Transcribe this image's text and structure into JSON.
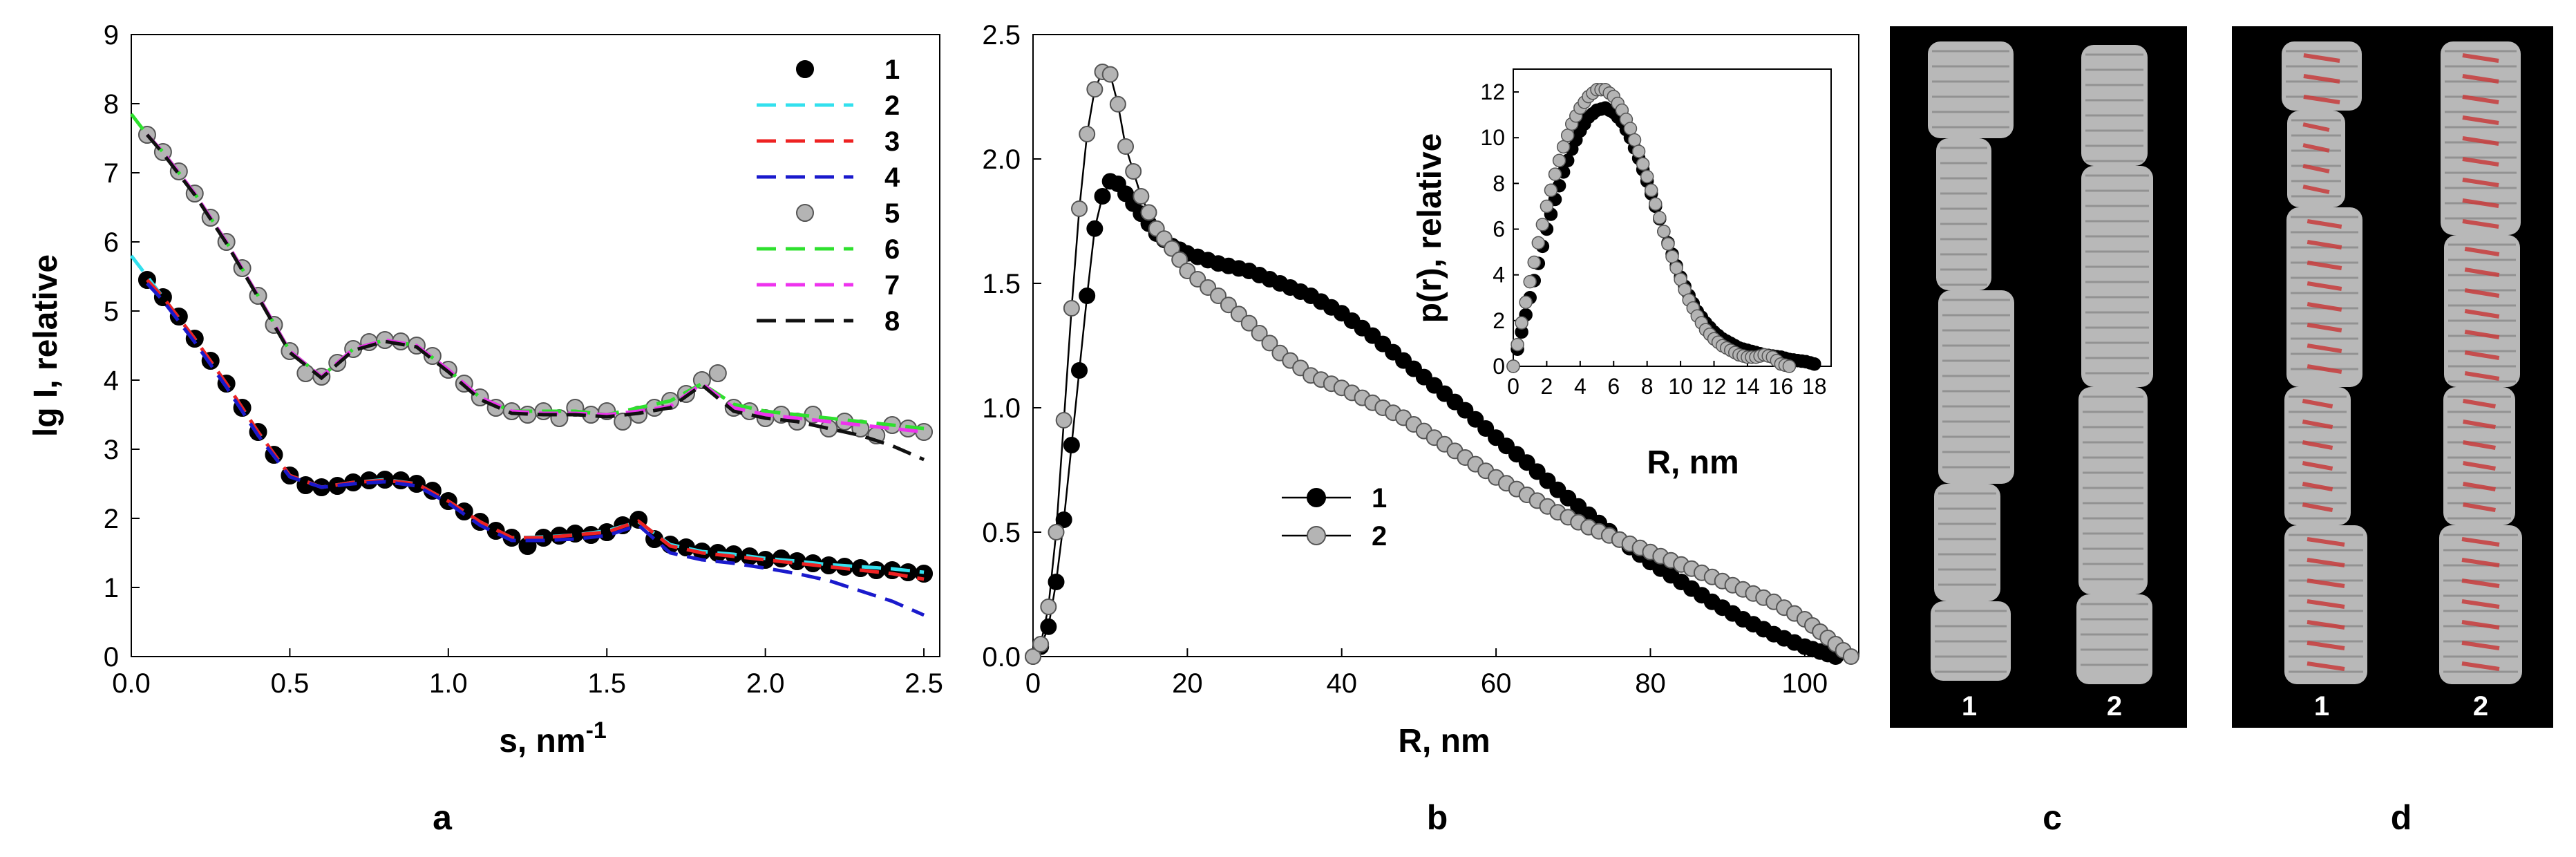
{
  "colors": {
    "c1": "#000000",
    "c2": "#33e0ee",
    "c3": "#ee2222",
    "c4": "#1a1acc",
    "c5": "#b4b4b4",
    "c6": "#2ee02e",
    "c7": "#ee33ee",
    "c8": "#111111",
    "model_gray": "#c8c8c8",
    "model_red": "#c83c3c",
    "panel_bg": "#000000"
  },
  "panel_labels": {
    "a": "a",
    "b": "b",
    "c": "c",
    "d": "d"
  },
  "images": {
    "c": {
      "labels": [
        "1",
        "2"
      ],
      "description_icon": "bead-model-gray-icon"
    },
    "d": {
      "labels": [
        "1",
        "2"
      ],
      "description_icon": "bead-model-red-overlay-icon"
    }
  },
  "chart_data": [
    {
      "type": "line",
      "title": "",
      "xlabel": "s, nm",
      "xlabel_sup": "-1",
      "ylabel": "lg I, relative",
      "xlim": [
        0,
        2.55
      ],
      "ylim": [
        0,
        9
      ],
      "xticks": [
        "0.0",
        "0.5",
        "1.0",
        "1.5",
        "2.0",
        "2.5"
      ],
      "yticks": [
        "0",
        "1",
        "2",
        "3",
        "4",
        "5",
        "6",
        "7",
        "8",
        "9"
      ],
      "legend_position": "top-right",
      "series": [
        {
          "name": "1",
          "style": "markers-black",
          "x": [
            0.05,
            0.1,
            0.15,
            0.2,
            0.25,
            0.3,
            0.35,
            0.4,
            0.45,
            0.5,
            0.55,
            0.6,
            0.65,
            0.7,
            0.75,
            0.8,
            0.85,
            0.9,
            0.95,
            1.0,
            1.05,
            1.1,
            1.15,
            1.2,
            1.25,
            1.3,
            1.35,
            1.4,
            1.45,
            1.5,
            1.55,
            1.6,
            1.65,
            1.7,
            1.75,
            1.8,
            1.85,
            1.9,
            1.95,
            2.0,
            2.05,
            2.1,
            2.15,
            2.2,
            2.25,
            2.3,
            2.35,
            2.4,
            2.45,
            2.5
          ],
          "y": [
            5.45,
            5.2,
            4.92,
            4.6,
            4.28,
            3.95,
            3.6,
            3.25,
            2.92,
            2.62,
            2.48,
            2.45,
            2.47,
            2.52,
            2.55,
            2.56,
            2.55,
            2.5,
            2.4,
            2.25,
            2.1,
            1.95,
            1.82,
            1.72,
            1.6,
            1.72,
            1.75,
            1.78,
            1.76,
            1.8,
            1.9,
            1.98,
            1.7,
            1.62,
            1.58,
            1.52,
            1.5,
            1.48,
            1.45,
            1.4,
            1.42,
            1.38,
            1.35,
            1.32,
            1.3,
            1.28,
            1.25,
            1.25,
            1.22,
            1.2
          ]
        },
        {
          "name": "2",
          "style": "dash",
          "x": [
            0,
            0.05,
            0.1,
            0.2,
            0.3,
            0.4,
            0.5,
            0.6,
            0.7,
            0.8,
            0.9,
            1.0,
            1.1,
            1.2,
            1.3,
            1.4,
            1.5,
            1.6,
            1.7,
            1.8,
            1.9,
            2.0,
            2.1,
            2.2,
            2.3,
            2.4,
            2.5
          ],
          "y": [
            5.8,
            5.5,
            5.2,
            4.6,
            3.95,
            3.25,
            2.62,
            2.45,
            2.52,
            2.56,
            2.5,
            2.25,
            1.95,
            1.72,
            1.73,
            1.76,
            1.82,
            1.95,
            1.62,
            1.52,
            1.48,
            1.42,
            1.38,
            1.33,
            1.3,
            1.27,
            1.22
          ]
        },
        {
          "name": "3",
          "style": "dash",
          "x": [
            0.05,
            0.1,
            0.2,
            0.3,
            0.4,
            0.5,
            0.6,
            0.7,
            0.8,
            0.9,
            1.0,
            1.1,
            1.2,
            1.3,
            1.4,
            1.5,
            1.6,
            1.7,
            1.8,
            1.9,
            2.0,
            2.1,
            2.2,
            2.3,
            2.4,
            2.5
          ],
          "y": [
            5.45,
            5.2,
            4.6,
            3.95,
            3.25,
            2.62,
            2.45,
            2.52,
            2.55,
            2.5,
            2.25,
            1.95,
            1.72,
            1.72,
            1.76,
            1.8,
            1.96,
            1.6,
            1.5,
            1.45,
            1.4,
            1.35,
            1.3,
            1.25,
            1.2,
            1.12
          ]
        },
        {
          "name": "4",
          "style": "dash",
          "x": [
            0.05,
            0.1,
            0.2,
            0.3,
            0.4,
            0.5,
            0.6,
            0.7,
            0.8,
            0.9,
            1.0,
            1.1,
            1.2,
            1.3,
            1.4,
            1.5,
            1.6,
            1.7,
            1.8,
            1.9,
            2.0,
            2.1,
            2.2,
            2.3,
            2.4,
            2.5
          ],
          "y": [
            5.4,
            5.15,
            4.55,
            3.9,
            3.2,
            2.6,
            2.45,
            2.5,
            2.53,
            2.47,
            2.22,
            1.9,
            1.68,
            1.68,
            1.7,
            1.75,
            1.9,
            1.5,
            1.4,
            1.35,
            1.28,
            1.2,
            1.1,
            0.95,
            0.8,
            0.6
          ]
        },
        {
          "name": "5",
          "style": "markers-gray",
          "x": [
            0.05,
            0.1,
            0.15,
            0.2,
            0.25,
            0.3,
            0.35,
            0.4,
            0.45,
            0.5,
            0.55,
            0.6,
            0.65,
            0.7,
            0.75,
            0.8,
            0.85,
            0.9,
            0.95,
            1.0,
            1.05,
            1.1,
            1.15,
            1.2,
            1.25,
            1.3,
            1.35,
            1.4,
            1.45,
            1.5,
            1.55,
            1.6,
            1.65,
            1.7,
            1.75,
            1.8,
            1.85,
            1.9,
            1.95,
            2.0,
            2.05,
            2.1,
            2.15,
            2.2,
            2.25,
            2.3,
            2.35,
            2.4,
            2.45,
            2.5
          ],
          "y": [
            7.55,
            7.3,
            7.02,
            6.7,
            6.35,
            6.0,
            5.62,
            5.22,
            4.8,
            4.42,
            4.1,
            4.05,
            4.25,
            4.45,
            4.55,
            4.58,
            4.56,
            4.5,
            4.35,
            4.15,
            3.95,
            3.75,
            3.6,
            3.55,
            3.5,
            3.55,
            3.45,
            3.6,
            3.5,
            3.55,
            3.4,
            3.5,
            3.6,
            3.7,
            3.8,
            4.0,
            4.1,
            3.6,
            3.55,
            3.45,
            3.5,
            3.4,
            3.5,
            3.3,
            3.4,
            3.3,
            3.2,
            3.35,
            3.3,
            3.25
          ]
        },
        {
          "name": "6",
          "style": "dash",
          "x": [
            0,
            0.05,
            0.1,
            0.2,
            0.3,
            0.4,
            0.5,
            0.6,
            0.7,
            0.8,
            0.9,
            1.0,
            1.1,
            1.2,
            1.3,
            1.4,
            1.5,
            1.6,
            1.7,
            1.8,
            1.9,
            2.0,
            2.1,
            2.2,
            2.3,
            2.4,
            2.5
          ],
          "y": [
            7.85,
            7.55,
            7.3,
            6.7,
            6.0,
            5.22,
            4.42,
            4.05,
            4.45,
            4.58,
            4.5,
            4.15,
            3.75,
            3.55,
            3.55,
            3.55,
            3.5,
            3.6,
            3.7,
            3.95,
            3.65,
            3.55,
            3.5,
            3.45,
            3.4,
            3.35,
            3.3
          ]
        },
        {
          "name": "7",
          "style": "dash",
          "x": [
            0.05,
            0.1,
            0.2,
            0.3,
            0.4,
            0.5,
            0.6,
            0.7,
            0.8,
            0.9,
            1.0,
            1.1,
            1.2,
            1.3,
            1.4,
            1.5,
            1.6,
            1.7,
            1.8,
            1.9,
            2.0,
            2.1,
            2.2,
            2.3,
            2.4,
            2.5
          ],
          "y": [
            7.55,
            7.3,
            6.7,
            6.0,
            5.22,
            4.42,
            4.05,
            4.45,
            4.58,
            4.5,
            4.15,
            3.75,
            3.55,
            3.52,
            3.52,
            3.5,
            3.55,
            3.62,
            3.95,
            3.6,
            3.5,
            3.45,
            3.4,
            3.35,
            3.3,
            3.25
          ]
        },
        {
          "name": "8",
          "style": "dash",
          "x": [
            0.05,
            0.1,
            0.2,
            0.3,
            0.4,
            0.5,
            0.6,
            0.7,
            0.8,
            0.9,
            1.0,
            1.1,
            1.2,
            1.3,
            1.4,
            1.5,
            1.6,
            1.7,
            1.8,
            1.9,
            2.0,
            2.1,
            2.2,
            2.3,
            2.4,
            2.5
          ],
          "y": [
            7.55,
            7.28,
            6.68,
            5.98,
            5.2,
            4.4,
            4.03,
            4.43,
            4.56,
            4.48,
            4.12,
            3.72,
            3.52,
            3.5,
            3.5,
            3.47,
            3.52,
            3.6,
            3.93,
            3.55,
            3.45,
            3.4,
            3.3,
            3.2,
            3.05,
            2.85
          ]
        }
      ]
    },
    {
      "type": "line",
      "title": "",
      "xlabel": "R, nm",
      "ylabel": "",
      "xlim": [
        0,
        107
      ],
      "ylim": [
        0,
        2.5
      ],
      "xticks": [
        "0",
        "20",
        "40",
        "60",
        "80",
        "100"
      ],
      "yticks": [
        "0.0",
        "0.5",
        "1.0",
        "1.5",
        "2.0",
        "2.5"
      ],
      "legend_position": "center",
      "series": [
        {
          "name": "1",
          "x": [
            0,
            1,
            2,
            3,
            4,
            5,
            6,
            7,
            8,
            9,
            10,
            11,
            12,
            14,
            16,
            18,
            20,
            24,
            28,
            32,
            36,
            40,
            44,
            48,
            52,
            56,
            60,
            64,
            68,
            72,
            76,
            80,
            84,
            88,
            92,
            96,
            100,
            102,
            104
          ],
          "y": [
            0,
            0.04,
            0.12,
            0.3,
            0.55,
            0.85,
            1.15,
            1.45,
            1.72,
            1.85,
            1.91,
            1.9,
            1.86,
            1.78,
            1.7,
            1.65,
            1.62,
            1.58,
            1.55,
            1.5,
            1.45,
            1.38,
            1.29,
            1.19,
            1.09,
            0.99,
            0.88,
            0.78,
            0.67,
            0.57,
            0.47,
            0.38,
            0.3,
            0.22,
            0.15,
            0.09,
            0.04,
            0.02,
            0
          ]
        },
        {
          "name": "2",
          "x": [
            0,
            1,
            2,
            3,
            4,
            5,
            6,
            7,
            8,
            9,
            10,
            11,
            12,
            14,
            16,
            18,
            20,
            24,
            28,
            32,
            36,
            40,
            44,
            48,
            52,
            56,
            60,
            64,
            68,
            72,
            76,
            80,
            84,
            88,
            92,
            96,
            100,
            102,
            104,
            106
          ],
          "y": [
            0,
            0.05,
            0.2,
            0.5,
            0.95,
            1.4,
            1.8,
            2.1,
            2.28,
            2.35,
            2.34,
            2.22,
            2.05,
            1.85,
            1.72,
            1.64,
            1.55,
            1.45,
            1.34,
            1.22,
            1.13,
            1.08,
            1.02,
            0.96,
            0.88,
            0.8,
            0.72,
            0.65,
            0.58,
            0.52,
            0.47,
            0.42,
            0.37,
            0.32,
            0.27,
            0.22,
            0.15,
            0.1,
            0.05,
            0
          ]
        }
      ],
      "inset": {
        "type": "line",
        "xlabel": "R, nm",
        "ylabel": "p(r), relative",
        "xlim": [
          0,
          19
        ],
        "ylim": [
          0,
          13
        ],
        "xticks": [
          "0",
          "2",
          "4",
          "6",
          "8",
          "10",
          "12",
          "14",
          "16",
          "18"
        ],
        "yticks": [
          "0",
          "2",
          "4",
          "6",
          "8",
          "10",
          "12"
        ],
        "series": [
          {
            "name": "1",
            "x": [
              0,
              0.5,
              1,
              1.5,
              2,
              2.5,
              3,
              3.5,
              4,
              4.5,
              5,
              5.5,
              6,
              6.5,
              7,
              7.5,
              8,
              8.5,
              9,
              9.5,
              10,
              10.5,
              11,
              11.5,
              12,
              12.5,
              13,
              13.5,
              14,
              14.5,
              15,
              15.5,
              16,
              16.5,
              17,
              17.5,
              18
            ],
            "y": [
              0,
              1.5,
              3.0,
              4.5,
              6.0,
              7.3,
              8.5,
              9.5,
              10.3,
              10.9,
              11.2,
              11.3,
              11.1,
              10.7,
              10.0,
              9.1,
              8.1,
              7.0,
              5.9,
              4.9,
              3.9,
              3.1,
              2.4,
              1.9,
              1.5,
              1.2,
              1.0,
              0.8,
              0.7,
              0.6,
              0.5,
              0.45,
              0.4,
              0.3,
              0.25,
              0.2,
              0.1
            ]
          },
          {
            "name": "2",
            "x": [
              0,
              0.5,
              1,
              1.5,
              2,
              2.5,
              3,
              3.5,
              4,
              4.5,
              5,
              5.5,
              6,
              6.5,
              7,
              7.5,
              8,
              8.5,
              9,
              9.5,
              10,
              10.5,
              11,
              11.5,
              12,
              12.5,
              13,
              13.5,
              14,
              14.5,
              15,
              15.5,
              16,
              16.5
            ],
            "y": [
              0,
              1.9,
              3.7,
              5.4,
              7.0,
              8.4,
              9.6,
              10.6,
              11.3,
              11.8,
              12.1,
              12.1,
              11.8,
              11.2,
              10.4,
              9.4,
              8.3,
              7.1,
              5.9,
              4.8,
              3.8,
              2.9,
              2.2,
              1.6,
              1.2,
              0.9,
              0.7,
              0.5,
              0.4,
              0.4,
              0.5,
              0.4,
              0.1,
              0
            ]
          }
        ]
      }
    }
  ]
}
